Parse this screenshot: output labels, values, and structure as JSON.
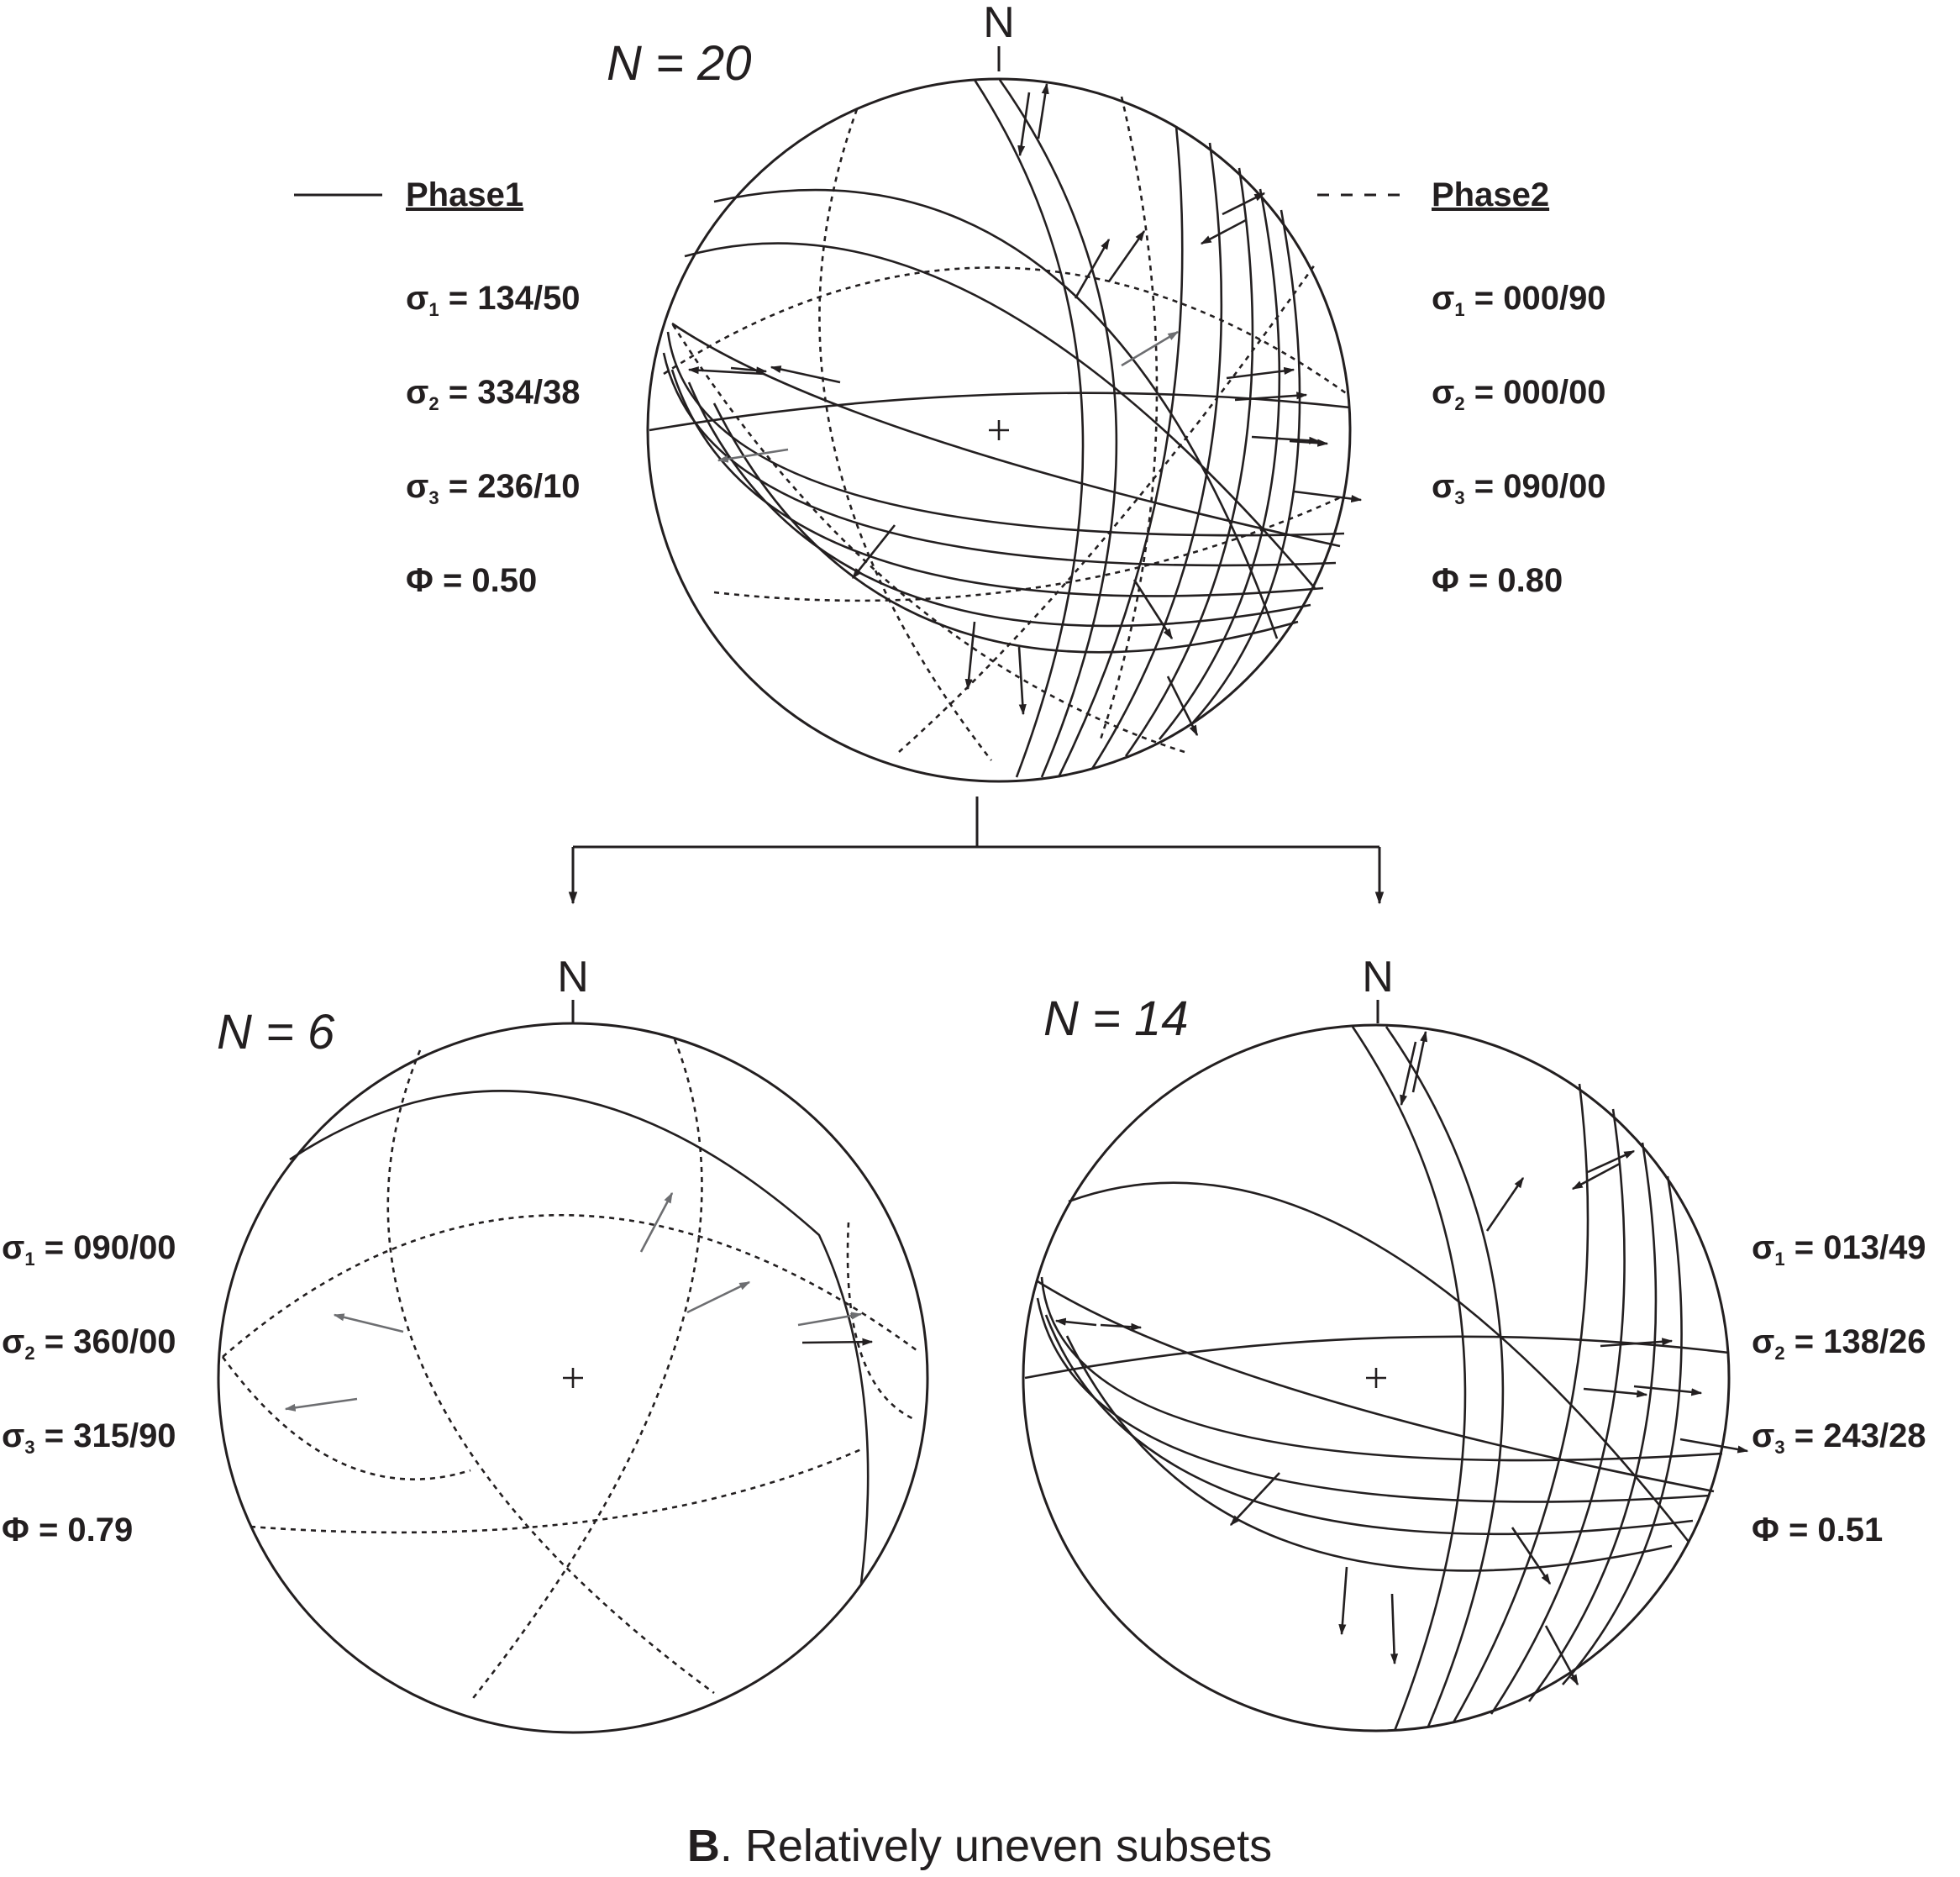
{
  "caption": {
    "letter": "B",
    "text": ". Relatively uneven subsets"
  },
  "colors": {
    "ink": "#231f20",
    "gray_arrow": "#6d6e71"
  },
  "top": {
    "n_label": "N = 20",
    "north": "N",
    "legend": {
      "phase1": {
        "title": "Phase1",
        "line": "solid"
      },
      "phase2": {
        "title": "Phase2",
        "line": "dashed"
      }
    },
    "phase1": {
      "sigma1": {
        "sym": "σ",
        "sub": "1",
        "val": " = 134/50"
      },
      "sigma2": {
        "sym": "σ",
        "sub": "2",
        "val": " = 334/38"
      },
      "sigma3": {
        "sym": "σ",
        "sub": "3",
        "val": " = 236/10"
      },
      "phi": "Φ = 0.50"
    },
    "phase2": {
      "sigma1": {
        "sym": "σ",
        "sub": "1",
        "val": " = 000/90"
      },
      "sigma2": {
        "sym": "σ",
        "sub": "2",
        "val": " = 000/00"
      },
      "sigma3": {
        "sym": "σ",
        "sub": "3",
        "val": " = 090/00"
      },
      "phi": "Φ = 0.80"
    }
  },
  "left": {
    "n_label": "N = 6",
    "north": "N",
    "stats": {
      "sigma1": {
        "sym": "σ",
        "sub": "1",
        "val": " = 090/00"
      },
      "sigma2": {
        "sym": "σ",
        "sub": "2",
        "val": " = 360/00"
      },
      "sigma3": {
        "sym": "σ",
        "sub": "3",
        "val": " = 315/90"
      },
      "phi": "Φ = 0.79"
    }
  },
  "right": {
    "n_label": "N = 14",
    "north": "N",
    "stats": {
      "sigma1": {
        "sym": "σ",
        "sub": "1",
        "val": " = 013/49"
      },
      "sigma2": {
        "sym": "σ",
        "sub": "2",
        "val": " = 138/26"
      },
      "sigma3": {
        "sym": "σ",
        "sub": "3",
        "val": " = 243/28"
      },
      "phi": "Φ = 0.51"
    }
  }
}
